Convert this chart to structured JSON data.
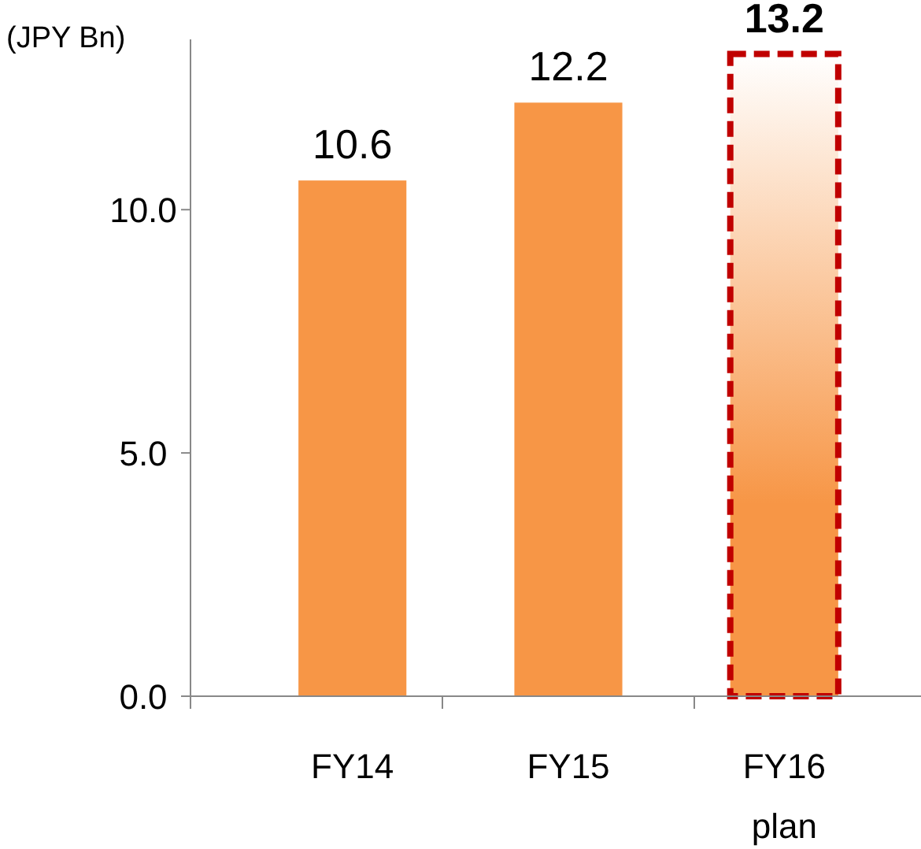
{
  "chart_data": {
    "type": "bar",
    "ylabel": "(JPY Bn)",
    "categories": [
      "FY14",
      "FY15",
      "FY16\nplan"
    ],
    "values": [
      10.6,
      12.2,
      13.2
    ],
    "colors": [
      "#f79646",
      "#f79646",
      "#f79646"
    ],
    "ylim": [
      0,
      13.5
    ],
    "yticks": [
      {
        "value": 0,
        "label": "0.0"
      },
      {
        "value": 5,
        "label": "5.0"
      },
      {
        "value": 10,
        "label": "10.0"
      }
    ],
    "data_labels": true,
    "grid": false
  }
}
